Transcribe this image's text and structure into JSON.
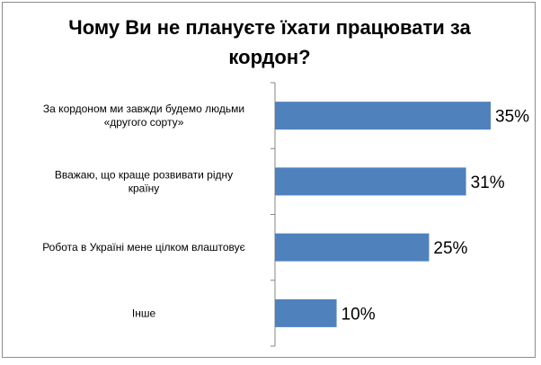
{
  "chart_data": {
    "type": "bar",
    "orientation": "horizontal",
    "title": "Чому Ви не плануєте їхати працювати за кордон?",
    "categories": [
      [
        "За кордоном ми завжди будемо людьми",
        "«другого сорту»"
      ],
      [
        "Вважаю, що краще розвивати рідну",
        "країну"
      ],
      [
        "Робота в Україні мене цілком влаштовує"
      ],
      [
        "Інше"
      ]
    ],
    "values": [
      35,
      31,
      25,
      10
    ],
    "value_labels": [
      "35%",
      "31%",
      "25%",
      "10%"
    ],
    "xlim": [
      0,
      35
    ],
    "grid": false,
    "legend": "none",
    "bar_color": "#4f81bd"
  }
}
